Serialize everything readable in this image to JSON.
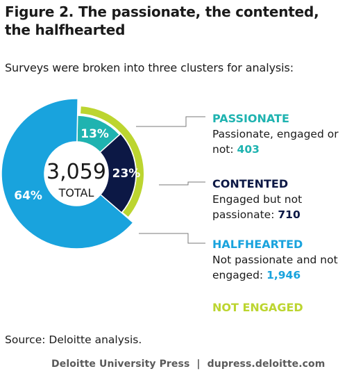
{
  "title": "Figure 2. The passionate, the contented, the halfhearted",
  "subtitle": "Surveys were broken into three clusters for analysis:",
  "chart_data": {
    "type": "pie",
    "center": {
      "value": "3,059",
      "label": "TOTAL"
    },
    "slices": [
      {
        "name": "PASSIONATE",
        "percent": 13,
        "label": "13%",
        "count": 403,
        "color": "#1fb3b0"
      },
      {
        "name": "CONTENTED",
        "percent": 23,
        "label": "23%",
        "count": 710,
        "color": "#0c1845"
      },
      {
        "name": "HALFHEARTED",
        "percent": 64,
        "label": "64%",
        "count": 1946,
        "color": "#19a3dd"
      }
    ],
    "outer_ring": {
      "name": "NOT ENGAGED",
      "color": "#bcd530",
      "covers": "CONTENTED"
    }
  },
  "legend": {
    "passionate": {
      "head": "PASSIONATE",
      "desc": "Passionate, engaged or not:",
      "value": "403",
      "color": "#1fb3b0"
    },
    "contented": {
      "head": "CONTENTED",
      "desc": "Engaged but not passionate:",
      "value": "710",
      "color": "#0c1845"
    },
    "halfhearted": {
      "head": "HALFHEARTED",
      "desc": "Not passionate and not engaged:",
      "value": "1,946",
      "color": "#19a3dd"
    },
    "not_engaged": {
      "head": "NOT ENGAGED",
      "color": "#bcd530"
    }
  },
  "source": "Source: Deloitte analysis.",
  "footer": {
    "left": "Deloitte University Press",
    "sep": "|",
    "right": "dupress.deloitte.com"
  }
}
